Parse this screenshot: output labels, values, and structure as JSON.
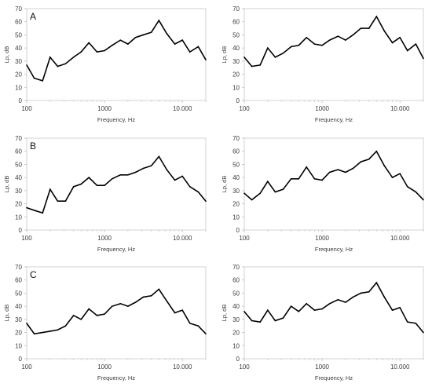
{
  "chart_data": [
    {
      "type": "line",
      "panel_label": "A",
      "xlabel": "Frequency, Hz",
      "ylabel": "Lp, dB",
      "xscale": "log",
      "xlim": [
        100,
        20000
      ],
      "ylim": [
        0,
        70
      ],
      "xticks": [
        100,
        1000,
        10000
      ],
      "xtick_labels": [
        "100",
        "1000",
        "10.000"
      ],
      "yticks": [
        0,
        10,
        20,
        30,
        40,
        50,
        60,
        70
      ],
      "grid": false,
      "x": [
        100,
        125,
        160,
        200,
        250,
        315,
        400,
        500,
        630,
        800,
        1000,
        1250,
        1600,
        2000,
        2500,
        3150,
        4000,
        5000,
        6300,
        8000,
        10000,
        12500,
        16000,
        20000
      ],
      "values": [
        27,
        17,
        15,
        33,
        26,
        28,
        33,
        37,
        44,
        37,
        38,
        42,
        46,
        43,
        48,
        50,
        52,
        61,
        51,
        43,
        46,
        37,
        41,
        31
      ]
    },
    {
      "type": "line",
      "panel_label": "",
      "xlabel": "Frequency, Hz",
      "ylabel": "Lp, dB",
      "xscale": "log",
      "xlim": [
        100,
        20000
      ],
      "ylim": [
        0,
        70
      ],
      "xticks": [
        100,
        1000,
        10000
      ],
      "xtick_labels": [
        "100",
        "1000",
        "10.000"
      ],
      "yticks": [
        0,
        10,
        20,
        30,
        40,
        50,
        60,
        70
      ],
      "grid": false,
      "x": [
        100,
        125,
        160,
        200,
        250,
        315,
        400,
        500,
        630,
        800,
        1000,
        1250,
        1600,
        2000,
        2500,
        3150,
        4000,
        5000,
        6300,
        8000,
        10000,
        12500,
        16000,
        20000
      ],
      "values": [
        33,
        26,
        27,
        40,
        33,
        36,
        41,
        42,
        48,
        43,
        42,
        46,
        49,
        46,
        50,
        55,
        55,
        64,
        53,
        44,
        48,
        38,
        43,
        32
      ]
    },
    {
      "type": "line",
      "panel_label": "B",
      "xlabel": "Frequency, Hz",
      "ylabel": "Lp, dB",
      "xscale": "log",
      "xlim": [
        100,
        20000
      ],
      "ylim": [
        0,
        70
      ],
      "xticks": [
        100,
        1000,
        10000
      ],
      "xtick_labels": [
        "100",
        "1000",
        "10.000"
      ],
      "yticks": [
        0,
        10,
        20,
        30,
        40,
        50,
        60,
        70
      ],
      "grid": false,
      "x": [
        100,
        125,
        160,
        200,
        250,
        315,
        400,
        500,
        630,
        800,
        1000,
        1250,
        1600,
        2000,
        2500,
        3150,
        4000,
        5000,
        6300,
        8000,
        10000,
        12500,
        16000,
        20000
      ],
      "values": [
        17,
        15,
        13,
        31,
        22,
        22,
        33,
        35,
        40,
        34,
        34,
        39,
        42,
        42,
        44,
        47,
        49,
        56,
        46,
        38,
        41,
        33,
        29,
        22
      ]
    },
    {
      "type": "line",
      "panel_label": "",
      "xlabel": "Frequency, Hz",
      "ylabel": "Lp, dB",
      "xscale": "log",
      "xlim": [
        100,
        20000
      ],
      "ylim": [
        0,
        70
      ],
      "xticks": [
        100,
        1000,
        10000
      ],
      "xtick_labels": [
        "100",
        "1000",
        "10.000"
      ],
      "yticks": [
        0,
        10,
        20,
        30,
        40,
        50,
        60,
        70
      ],
      "grid": false,
      "x": [
        100,
        125,
        160,
        200,
        250,
        315,
        400,
        500,
        630,
        800,
        1000,
        1250,
        1600,
        2000,
        2500,
        3150,
        4000,
        5000,
        6300,
        8000,
        10000,
        12500,
        16000,
        20000
      ],
      "values": [
        28,
        23,
        28,
        37,
        29,
        31,
        39,
        39,
        48,
        39,
        38,
        44,
        46,
        44,
        47,
        52,
        54,
        60,
        49,
        40,
        43,
        33,
        29,
        23
      ]
    },
    {
      "type": "line",
      "panel_label": "C",
      "xlabel": "Frequency, Hz",
      "ylabel": "Lp, dB",
      "xscale": "log",
      "xlim": [
        100,
        20000
      ],
      "ylim": [
        0,
        70
      ],
      "xticks": [
        100,
        1000,
        10000
      ],
      "xtick_labels": [
        "100",
        "1000",
        "10.000"
      ],
      "yticks": [
        0,
        10,
        20,
        30,
        40,
        50,
        60,
        70
      ],
      "grid": false,
      "x": [
        100,
        125,
        160,
        200,
        250,
        315,
        400,
        500,
        630,
        800,
        1000,
        1250,
        1600,
        2000,
        2500,
        3150,
        4000,
        5000,
        6300,
        8000,
        10000,
        12500,
        16000,
        20000
      ],
      "values": [
        27,
        19,
        20,
        21,
        22,
        25,
        33,
        30,
        38,
        33,
        34,
        40,
        42,
        40,
        43,
        47,
        48,
        53,
        44,
        35,
        37,
        27,
        25,
        19
      ]
    },
    {
      "type": "line",
      "panel_label": "",
      "xlabel": "Frequency, Hz",
      "ylabel": "Lp, dB",
      "xscale": "log",
      "xlim": [
        100,
        20000
      ],
      "ylim": [
        0,
        70
      ],
      "xticks": [
        100,
        1000,
        10000
      ],
      "xtick_labels": [
        "100",
        "1000",
        "10.000"
      ],
      "yticks": [
        0,
        10,
        20,
        30,
        40,
        50,
        60,
        70
      ],
      "grid": false,
      "x": [
        100,
        125,
        160,
        200,
        250,
        315,
        400,
        500,
        630,
        800,
        1000,
        1250,
        1600,
        2000,
        2500,
        3150,
        4000,
        5000,
        6300,
        8000,
        10000,
        12500,
        16000,
        20000
      ],
      "values": [
        36,
        29,
        28,
        37,
        29,
        31,
        40,
        36,
        42,
        37,
        38,
        42,
        45,
        43,
        47,
        50,
        51,
        58,
        47,
        37,
        39,
        28,
        27,
        20
      ]
    }
  ]
}
